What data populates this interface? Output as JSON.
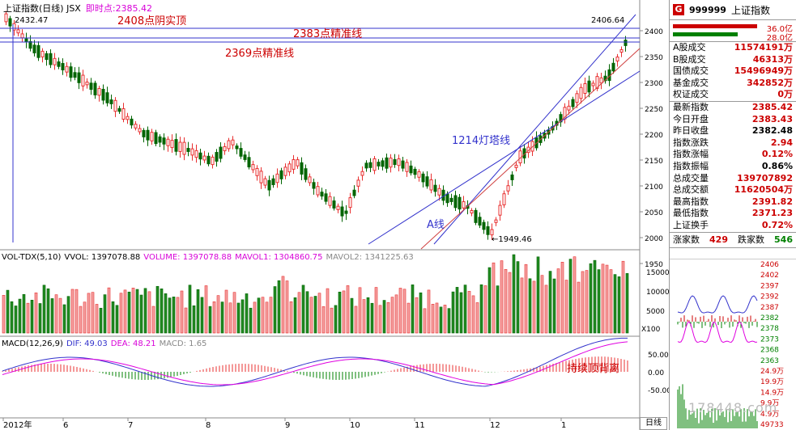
{
  "header": {
    "title": "上证指数(日线) JSX",
    "realtime_label": "即时点:",
    "realtime_value": "2385.42",
    "high_mark": "2432.47",
    "top_right_mark": "2406.64",
    "low_mark": "←1949.46"
  },
  "annotations": {
    "top": "2408点阴实顶",
    "line1": "2383点精准线",
    "line2": "2369点精准线",
    "tower": "1214灯塔线",
    "aline": "A线",
    "divergence": "持续顶背离"
  },
  "price_axis": [
    "2400",
    "2350",
    "2300",
    "2250",
    "2200",
    "2150",
    "2100",
    "2050",
    "2000",
    "1950"
  ],
  "vol": {
    "label": "VOL-TDX(5,10)",
    "vvol": "VVOL: 1397078.88",
    "volume": "VOLUME: 1397078.88",
    "mavol1": "MAVOL1: 1304860.75",
    "mavol2": "MAVOL2: 1341225.63",
    "axis": [
      "15000",
      "10000",
      "5000"
    ],
    "unit": "X100"
  },
  "macd": {
    "label": "MACD(12,26,9)",
    "dif": "DIF: 49.03",
    "dea": "DEA: 48.21",
    "macd": "MACD: 1.65",
    "axis": [
      "50.00",
      "0.00",
      "-50.00"
    ]
  },
  "xaxis": [
    "2012年",
    "6",
    "7",
    "8",
    "9",
    "10",
    "11",
    "12",
    "1"
  ],
  "sidebar": {
    "code": "999999",
    "name": "上证指数",
    "badge": "G",
    "bar1": "36.0亿",
    "bar2": "28.0亿",
    "rows1": [
      {
        "k": "A股成交",
        "v": "11574191万"
      },
      {
        "k": "B股成交",
        "v": "46313万"
      },
      {
        "k": "国债成交",
        "v": "15496949万"
      },
      {
        "k": "基金成交",
        "v": "342852万"
      },
      {
        "k": "权证成交",
        "v": "0万"
      }
    ],
    "rows2": [
      {
        "k": "最新指数",
        "v": "2385.42"
      },
      {
        "k": "今日开盘",
        "v": "2383.43"
      },
      {
        "k": "昨日收盘",
        "v": "2382.48"
      },
      {
        "k": "指数涨跌",
        "v": "2.94"
      },
      {
        "k": "指数涨幅",
        "v": "0.12%"
      },
      {
        "k": "指数振幅",
        "v": "0.86%"
      },
      {
        "k": "总成交量",
        "v": "139707892"
      },
      {
        "k": "总成交额",
        "v": "11620504万"
      },
      {
        "k": "最高指数",
        "v": "2391.82"
      },
      {
        "k": "最低指数",
        "v": "2371.23"
      },
      {
        "k": "上证换手",
        "v": "0.72%"
      }
    ],
    "up_label": "涨家数",
    "up_val": "429",
    "down_label": "跌家数",
    "down_val": "546",
    "mini_axis": [
      "2406",
      "2402",
      "2397",
      "2392",
      "2387",
      "2382",
      "2378",
      "2373",
      "2368",
      "2363",
      "24.9万",
      "19.9万",
      "14.9万",
      "9.9万",
      "4.9万",
      "49733"
    ]
  },
  "footer": {
    "dayline": "日线",
    "watermark": "178448.com"
  }
}
